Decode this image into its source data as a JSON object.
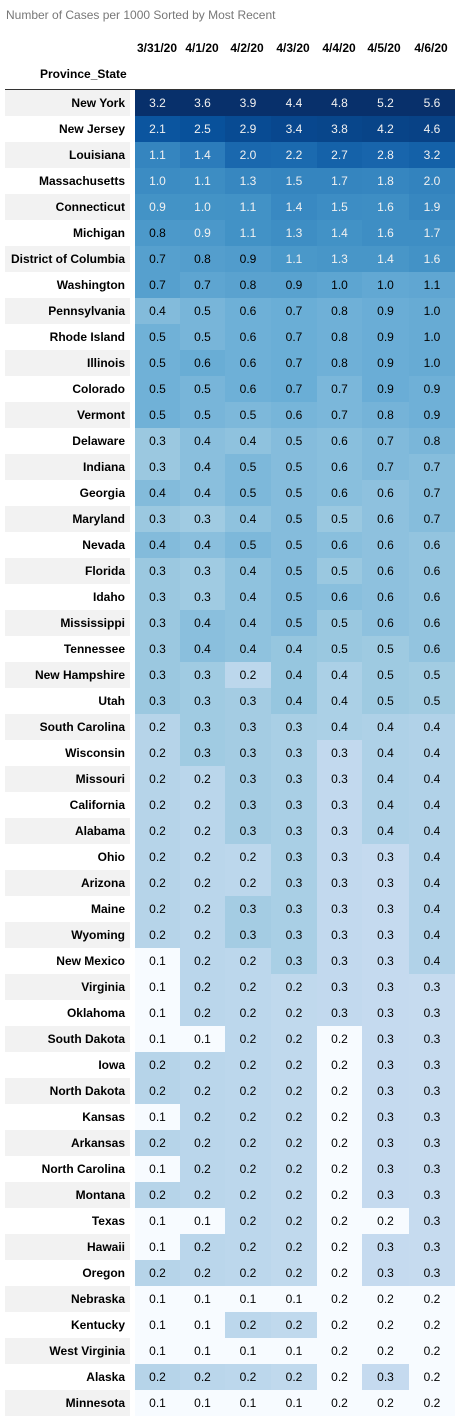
{
  "caption": "Number of Cases per 1000 Sorted by Most Recent",
  "chart_data": {
    "type": "heatmap",
    "title": "Number of Cases per 1000 Sorted by Most Recent",
    "index_label": "Province_State",
    "columns": [
      "3/31/20",
      "4/1/20",
      "4/2/20",
      "4/3/20",
      "4/4/20",
      "4/5/20",
      "4/6/20"
    ],
    "colormap": "Blues",
    "rows": [
      {
        "state": "New York",
        "values": [
          3.2,
          3.6,
          3.9,
          4.4,
          4.8,
          5.2,
          5.6
        ]
      },
      {
        "state": "New Jersey",
        "values": [
          2.1,
          2.5,
          2.9,
          3.4,
          3.8,
          4.2,
          4.6
        ]
      },
      {
        "state": "Louisiana",
        "values": [
          1.1,
          1.4,
          2.0,
          2.2,
          2.7,
          2.8,
          3.2
        ]
      },
      {
        "state": "Massachusetts",
        "values": [
          1.0,
          1.1,
          1.3,
          1.5,
          1.7,
          1.8,
          2.0
        ]
      },
      {
        "state": "Connecticut",
        "values": [
          0.9,
          1.0,
          1.1,
          1.4,
          1.5,
          1.6,
          1.9
        ]
      },
      {
        "state": "Michigan",
        "values": [
          0.8,
          0.9,
          1.1,
          1.3,
          1.4,
          1.6,
          1.7
        ]
      },
      {
        "state": "District of Columbia",
        "values": [
          0.7,
          0.8,
          0.9,
          1.1,
          1.3,
          1.4,
          1.6
        ]
      },
      {
        "state": "Washington",
        "values": [
          0.7,
          0.7,
          0.8,
          0.9,
          1.0,
          1.0,
          1.1
        ]
      },
      {
        "state": "Pennsylvania",
        "values": [
          0.4,
          0.5,
          0.6,
          0.7,
          0.8,
          0.9,
          1.0
        ]
      },
      {
        "state": "Rhode Island",
        "values": [
          0.5,
          0.5,
          0.6,
          0.7,
          0.8,
          0.9,
          1.0
        ]
      },
      {
        "state": "Illinois",
        "values": [
          0.5,
          0.6,
          0.6,
          0.7,
          0.8,
          0.9,
          1.0
        ]
      },
      {
        "state": "Colorado",
        "values": [
          0.5,
          0.5,
          0.6,
          0.7,
          0.7,
          0.9,
          0.9
        ]
      },
      {
        "state": "Vermont",
        "values": [
          0.5,
          0.5,
          0.5,
          0.6,
          0.7,
          0.8,
          0.9
        ]
      },
      {
        "state": "Delaware",
        "values": [
          0.3,
          0.4,
          0.4,
          0.5,
          0.6,
          0.7,
          0.8
        ]
      },
      {
        "state": "Indiana",
        "values": [
          0.3,
          0.4,
          0.5,
          0.5,
          0.6,
          0.7,
          0.7
        ]
      },
      {
        "state": "Georgia",
        "values": [
          0.4,
          0.4,
          0.5,
          0.5,
          0.6,
          0.6,
          0.7
        ]
      },
      {
        "state": "Maryland",
        "values": [
          0.3,
          0.3,
          0.4,
          0.5,
          0.5,
          0.6,
          0.7
        ]
      },
      {
        "state": "Nevada",
        "values": [
          0.4,
          0.4,
          0.5,
          0.5,
          0.6,
          0.6,
          0.6
        ]
      },
      {
        "state": "Florida",
        "values": [
          0.3,
          0.3,
          0.4,
          0.5,
          0.5,
          0.6,
          0.6
        ]
      },
      {
        "state": "Idaho",
        "values": [
          0.3,
          0.3,
          0.4,
          0.5,
          0.6,
          0.6,
          0.6
        ]
      },
      {
        "state": "Mississippi",
        "values": [
          0.3,
          0.4,
          0.4,
          0.5,
          0.5,
          0.6,
          0.6
        ]
      },
      {
        "state": "Tennessee",
        "values": [
          0.3,
          0.4,
          0.4,
          0.4,
          0.5,
          0.5,
          0.6
        ]
      },
      {
        "state": "New Hampshire",
        "values": [
          0.3,
          0.3,
          0.2,
          0.4,
          0.4,
          0.5,
          0.5
        ]
      },
      {
        "state": "Utah",
        "values": [
          0.3,
          0.3,
          0.3,
          0.4,
          0.4,
          0.5,
          0.5
        ]
      },
      {
        "state": "South Carolina",
        "values": [
          0.2,
          0.3,
          0.3,
          0.3,
          0.4,
          0.4,
          0.4
        ]
      },
      {
        "state": "Wisconsin",
        "values": [
          0.2,
          0.3,
          0.3,
          0.3,
          0.3,
          0.4,
          0.4
        ]
      },
      {
        "state": "Missouri",
        "values": [
          0.2,
          0.2,
          0.3,
          0.3,
          0.3,
          0.4,
          0.4
        ]
      },
      {
        "state": "California",
        "values": [
          0.2,
          0.2,
          0.3,
          0.3,
          0.3,
          0.4,
          0.4
        ]
      },
      {
        "state": "Alabama",
        "values": [
          0.2,
          0.2,
          0.3,
          0.3,
          0.3,
          0.4,
          0.4
        ]
      },
      {
        "state": "Ohio",
        "values": [
          0.2,
          0.2,
          0.2,
          0.3,
          0.3,
          0.3,
          0.4
        ]
      },
      {
        "state": "Arizona",
        "values": [
          0.2,
          0.2,
          0.2,
          0.3,
          0.3,
          0.3,
          0.4
        ]
      },
      {
        "state": "Maine",
        "values": [
          0.2,
          0.2,
          0.3,
          0.3,
          0.3,
          0.3,
          0.4
        ]
      },
      {
        "state": "Wyoming",
        "values": [
          0.2,
          0.2,
          0.3,
          0.3,
          0.3,
          0.3,
          0.4
        ]
      },
      {
        "state": "New Mexico",
        "values": [
          0.1,
          0.2,
          0.2,
          0.3,
          0.3,
          0.3,
          0.4
        ]
      },
      {
        "state": "Virginia",
        "values": [
          0.1,
          0.2,
          0.2,
          0.2,
          0.3,
          0.3,
          0.3
        ]
      },
      {
        "state": "Oklahoma",
        "values": [
          0.1,
          0.2,
          0.2,
          0.2,
          0.3,
          0.3,
          0.3
        ]
      },
      {
        "state": "South Dakota",
        "values": [
          0.1,
          0.1,
          0.2,
          0.2,
          0.2,
          0.3,
          0.3
        ]
      },
      {
        "state": "Iowa",
        "values": [
          0.2,
          0.2,
          0.2,
          0.2,
          0.2,
          0.3,
          0.3
        ]
      },
      {
        "state": "North Dakota",
        "values": [
          0.2,
          0.2,
          0.2,
          0.2,
          0.2,
          0.3,
          0.3
        ]
      },
      {
        "state": "Kansas",
        "values": [
          0.1,
          0.2,
          0.2,
          0.2,
          0.2,
          0.3,
          0.3
        ]
      },
      {
        "state": "Arkansas",
        "values": [
          0.2,
          0.2,
          0.2,
          0.2,
          0.2,
          0.3,
          0.3
        ]
      },
      {
        "state": "North Carolina",
        "values": [
          0.1,
          0.2,
          0.2,
          0.2,
          0.2,
          0.3,
          0.3
        ]
      },
      {
        "state": "Montana",
        "values": [
          0.2,
          0.2,
          0.2,
          0.2,
          0.2,
          0.3,
          0.3
        ]
      },
      {
        "state": "Texas",
        "values": [
          0.1,
          0.1,
          0.2,
          0.2,
          0.2,
          0.2,
          0.3
        ]
      },
      {
        "state": "Hawaii",
        "values": [
          0.1,
          0.2,
          0.2,
          0.2,
          0.2,
          0.3,
          0.3
        ]
      },
      {
        "state": "Oregon",
        "values": [
          0.2,
          0.2,
          0.2,
          0.2,
          0.2,
          0.3,
          0.3
        ]
      },
      {
        "state": "Nebraska",
        "values": [
          0.1,
          0.1,
          0.1,
          0.1,
          0.2,
          0.2,
          0.2
        ]
      },
      {
        "state": "Kentucky",
        "values": [
          0.1,
          0.1,
          0.2,
          0.2,
          0.2,
          0.2,
          0.2
        ]
      },
      {
        "state": "West Virginia",
        "values": [
          0.1,
          0.1,
          0.1,
          0.1,
          0.2,
          0.2,
          0.2
        ]
      },
      {
        "state": "Alaska",
        "values": [
          0.2,
          0.2,
          0.2,
          0.2,
          0.2,
          0.3,
          0.2
        ]
      },
      {
        "state": "Minnesota",
        "values": [
          0.1,
          0.1,
          0.1,
          0.1,
          0.2,
          0.2,
          0.2
        ]
      }
    ]
  }
}
